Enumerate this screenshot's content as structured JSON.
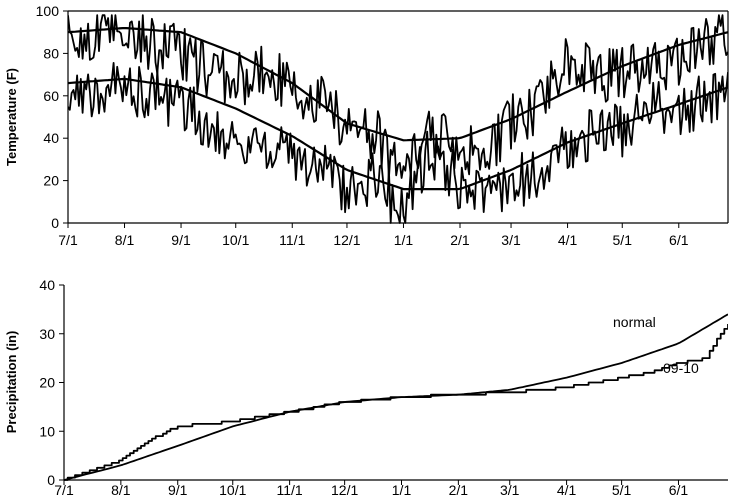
{
  "chart_data": [
    {
      "type": "line",
      "ylabel": "Temperature (F)",
      "xlabel": "",
      "x_ticks": [
        "7/1",
        "8/1",
        "9/1",
        "10/1",
        "11/1",
        "12/1",
        "1/1",
        "2/1",
        "3/1",
        "4/1",
        "5/1",
        "6/1"
      ],
      "xlim_days": [
        0,
        362
      ],
      "ylim": [
        0,
        100
      ],
      "y_ticks": [
        0,
        20,
        40,
        60,
        80,
        100
      ],
      "grid": false,
      "legend": "none",
      "series": [
        {
          "role": "normal-high",
          "x": [
            0,
            31,
            62,
            92,
            123,
            153,
            184,
            215,
            243,
            274,
            304,
            335,
            362
          ],
          "values": [
            90,
            92,
            90,
            80,
            66,
            47,
            39,
            40,
            49,
            62,
            74,
            84,
            90
          ]
        },
        {
          "role": "normal-low",
          "x": [
            0,
            31,
            62,
            92,
            123,
            153,
            184,
            215,
            243,
            274,
            304,
            335,
            362
          ],
          "values": [
            66,
            68,
            64,
            54,
            41,
            25,
            16,
            16,
            25,
            38,
            47,
            56,
            64
          ]
        },
        {
          "role": "observed-high",
          "x": [
            0,
            15,
            31,
            46,
            62,
            77,
            92,
            107,
            123,
            138,
            153,
            168,
            184,
            199,
            215,
            229,
            243,
            258,
            274,
            289,
            304,
            320,
            335,
            350,
            362
          ],
          "values": [
            85,
            88,
            93,
            84,
            81,
            70,
            67,
            72,
            63,
            58,
            45,
            42,
            24,
            42,
            38,
            30,
            48,
            55,
            78,
            70,
            70,
            74,
            77,
            85,
            90
          ]
        },
        {
          "role": "observed-low",
          "x": [
            0,
            15,
            31,
            46,
            62,
            77,
            92,
            107,
            123,
            138,
            153,
            168,
            184,
            199,
            215,
            229,
            243,
            258,
            274,
            289,
            304,
            320,
            335,
            350,
            362
          ],
          "values": [
            58,
            63,
            64,
            62,
            55,
            48,
            38,
            38,
            30,
            28,
            15,
            22,
            5,
            35,
            18,
            12,
            20,
            22,
            35,
            42,
            44,
            55,
            52,
            58,
            62
          ]
        }
      ]
    },
    {
      "type": "line",
      "ylabel": "Precipitation (in)",
      "xlabel": "",
      "x_ticks": [
        "7/1",
        "8/1",
        "9/1",
        "10/1",
        "11/1",
        "12/1",
        "1/1",
        "2/1",
        "3/1",
        "4/1",
        "5/1",
        "6/1"
      ],
      "xlim_days": [
        0,
        362
      ],
      "ylim": [
        0,
        40
      ],
      "y_ticks": [
        0,
        10,
        20,
        30,
        40
      ],
      "grid": false,
      "legend": "none",
      "series": [
        {
          "name": "normal",
          "x": [
            0,
            31,
            62,
            92,
            123,
            153,
            184,
            215,
            243,
            274,
            304,
            335,
            362
          ],
          "values": [
            0,
            3,
            7,
            11,
            14,
            16,
            17,
            17.5,
            18.5,
            21,
            24,
            28,
            34
          ]
        },
        {
          "name": "09-10",
          "x": [
            0,
            31,
            45,
            62,
            92,
            123,
            153,
            184,
            215,
            243,
            274,
            304,
            320,
            335,
            350,
            358,
            362
          ],
          "values": [
            0,
            4,
            8,
            11,
            12,
            14,
            16,
            17,
            17.5,
            18,
            19,
            21,
            22,
            24,
            25,
            30,
            32
          ]
        }
      ],
      "annotations": [
        "normal",
        "09-10"
      ]
    }
  ]
}
